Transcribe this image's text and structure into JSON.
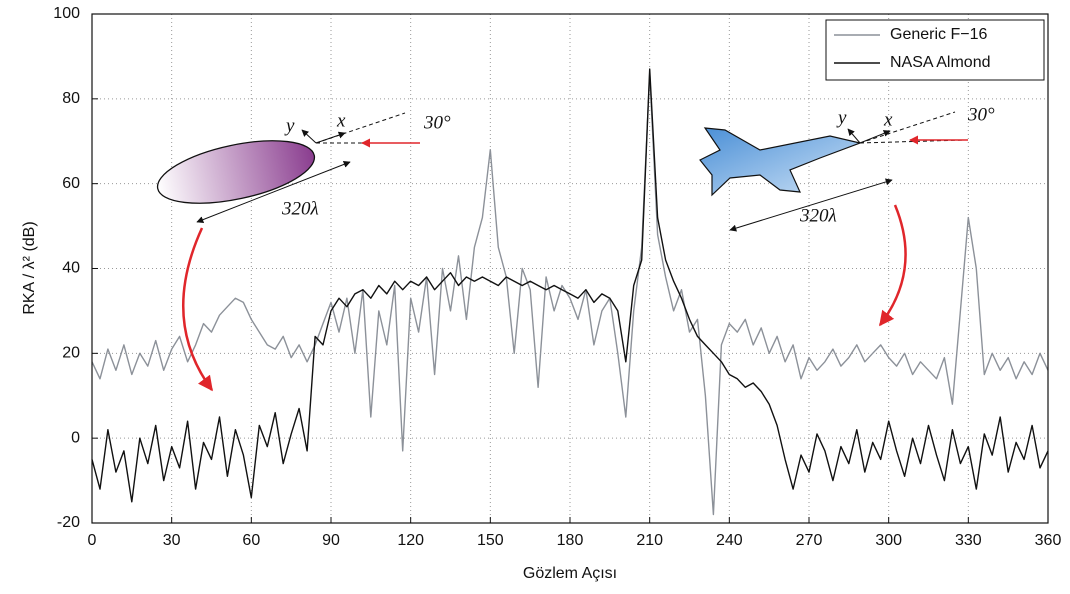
{
  "chart_data": {
    "type": "line",
    "x_label": "Gözlem Açısı",
    "y_label": "RKA / λ² (dB)",
    "xlim": [
      0,
      360
    ],
    "xticks": [
      0,
      30,
      60,
      90,
      120,
      150,
      180,
      210,
      240,
      270,
      300,
      330,
      360
    ],
    "ylim": [
      -20,
      100
    ],
    "yticks": [
      -20,
      0,
      20,
      40,
      60,
      80,
      100
    ],
    "grid": true,
    "legend": "upper right",
    "x": [
      0,
      3,
      6,
      9,
      12,
      15,
      18,
      21,
      24,
      27,
      30,
      33,
      36,
      39,
      42,
      45,
      48,
      51,
      54,
      57,
      60,
      63,
      66,
      69,
      72,
      75,
      78,
      81,
      84,
      87,
      90,
      93,
      96,
      99,
      102,
      105,
      108,
      111,
      114,
      117,
      120,
      123,
      126,
      129,
      132,
      135,
      138,
      141,
      144,
      147,
      150,
      153,
      156,
      159,
      162,
      165,
      168,
      171,
      174,
      177,
      180,
      183,
      186,
      189,
      192,
      195,
      198,
      201,
      204,
      207,
      210,
      213,
      216,
      219,
      222,
      225,
      228,
      231,
      234,
      237,
      240,
      243,
      246,
      249,
      252,
      255,
      258,
      261,
      264,
      267,
      270,
      273,
      276,
      279,
      282,
      285,
      288,
      291,
      294,
      297,
      300,
      303,
      306,
      309,
      312,
      315,
      318,
      321,
      324,
      327,
      330,
      333,
      336,
      339,
      342,
      345,
      348,
      351,
      354,
      357,
      360
    ],
    "series": [
      {
        "name": "Generic F−16",
        "color": "#8c9199",
        "values": [
          18,
          14,
          21,
          16,
          22,
          15,
          20,
          17,
          23,
          16,
          21,
          24,
          18,
          22,
          27,
          25,
          29,
          31,
          33,
          32,
          28,
          25,
          22,
          21,
          24,
          19,
          22,
          18,
          22,
          27,
          32,
          25,
          33,
          20,
          35,
          5,
          30,
          22,
          36,
          -3,
          33,
          25,
          38,
          15,
          40,
          30,
          43,
          28,
          45,
          52,
          68,
          45,
          38,
          20,
          40,
          35,
          12,
          38,
          30,
          36,
          33,
          28,
          35,
          22,
          30,
          33,
          20,
          5,
          30,
          45,
          86,
          48,
          38,
          30,
          35,
          25,
          28,
          10,
          -18,
          22,
          27,
          25,
          28,
          22,
          26,
          20,
          24,
          18,
          22,
          14,
          19,
          16,
          18,
          21,
          17,
          19,
          22,
          18,
          20,
          22,
          19,
          17,
          20,
          15,
          18,
          16,
          14,
          19,
          8,
          30,
          52,
          40,
          15,
          20,
          16,
          19,
          14,
          18,
          15,
          20,
          16
        ]
      },
      {
        "name": "NASA Almond",
        "color": "#111111",
        "values": [
          -5,
          -12,
          2,
          -8,
          -3,
          -15,
          0,
          -6,
          3,
          -10,
          -2,
          -7,
          4,
          -12,
          -1,
          -5,
          5,
          -9,
          2,
          -4,
          -14,
          3,
          -2,
          6,
          -6,
          1,
          7,
          -3,
          24,
          22,
          30,
          33,
          31,
          34,
          35,
          33,
          36,
          34,
          37,
          35,
          37,
          36,
          38,
          35,
          37,
          39,
          36,
          38,
          37,
          38,
          37,
          36,
          38,
          37,
          36,
          37,
          36,
          35,
          36,
          35,
          34,
          33,
          35,
          32,
          34,
          33,
          30,
          18,
          36,
          42,
          87,
          52,
          42,
          37,
          33,
          28,
          24,
          22,
          20,
          18,
          15,
          14,
          12,
          13,
          11,
          8,
          3,
          -5,
          -12,
          -4,
          -8,
          1,
          -3,
          -10,
          -2,
          -6,
          2,
          -8,
          -1,
          -5,
          4,
          -3,
          -9,
          0,
          -6,
          3,
          -4,
          -10,
          2,
          -6,
          -2,
          -12,
          1,
          -4,
          5,
          -8,
          -1,
          -5,
          3,
          -7,
          -3
        ]
      }
    ],
    "annotations": [
      "y",
      "x",
      "30°",
      "320λ",
      "y",
      "x",
      "30°",
      "320λ"
    ]
  }
}
